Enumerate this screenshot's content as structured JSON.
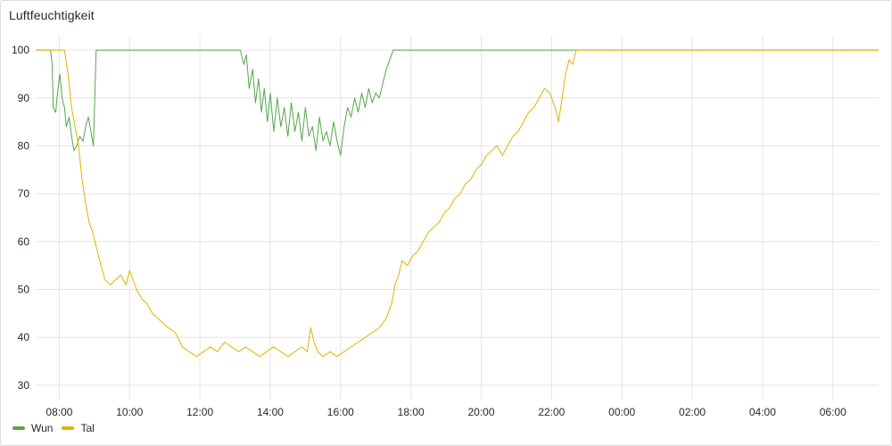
{
  "panel": {
    "title": "Luftfeuchtigkeit"
  },
  "chart_data": {
    "type": "line",
    "y_ticks": [
      30,
      40,
      50,
      60,
      70,
      80,
      90,
      100
    ],
    "ylim": [
      27,
      103
    ],
    "x_tick_labels": [
      "08:00",
      "10:00",
      "12:00",
      "14:00",
      "16:00",
      "18:00",
      "20:00",
      "22:00",
      "00:00",
      "02:00",
      "04:00",
      "06:00"
    ],
    "x_tick_hours": [
      8,
      10,
      12,
      14,
      16,
      18,
      20,
      22,
      24,
      26,
      28,
      30
    ],
    "xlim_hours": [
      7.33,
      31.3
    ],
    "grid": true,
    "legend_position": "bottom-left",
    "series": [
      {
        "name": "Wun",
        "color": "#56a64b",
        "points": [
          [
            7.33,
            100
          ],
          [
            7.75,
            100
          ],
          [
            7.8,
            97
          ],
          [
            7.83,
            88
          ],
          [
            7.9,
            87
          ],
          [
            7.95,
            91
          ],
          [
            8.02,
            95
          ],
          [
            8.08,
            90
          ],
          [
            8.15,
            88
          ],
          [
            8.2,
            84
          ],
          [
            8.28,
            86
          ],
          [
            8.35,
            82
          ],
          [
            8.42,
            79
          ],
          [
            8.5,
            80
          ],
          [
            8.58,
            82
          ],
          [
            8.68,
            81
          ],
          [
            8.75,
            84
          ],
          [
            8.83,
            86
          ],
          [
            8.9,
            83
          ],
          [
            8.97,
            80
          ],
          [
            9.05,
            100
          ],
          [
            13.0,
            100
          ],
          [
            13.15,
            100
          ],
          [
            13.25,
            97
          ],
          [
            13.32,
            99
          ],
          [
            13.4,
            92
          ],
          [
            13.5,
            96
          ],
          [
            13.58,
            89
          ],
          [
            13.67,
            94
          ],
          [
            13.75,
            87
          ],
          [
            13.83,
            92
          ],
          [
            13.92,
            85
          ],
          [
            14.0,
            91
          ],
          [
            14.1,
            83
          ],
          [
            14.2,
            90
          ],
          [
            14.3,
            84
          ],
          [
            14.4,
            88
          ],
          [
            14.5,
            82
          ],
          [
            14.6,
            89
          ],
          [
            14.7,
            83
          ],
          [
            14.8,
            87
          ],
          [
            14.9,
            81
          ],
          [
            15.0,
            88
          ],
          [
            15.1,
            82
          ],
          [
            15.2,
            84
          ],
          [
            15.3,
            79
          ],
          [
            15.4,
            86
          ],
          [
            15.5,
            81
          ],
          [
            15.6,
            83
          ],
          [
            15.7,
            80
          ],
          [
            15.8,
            85
          ],
          [
            15.9,
            81
          ],
          [
            16.0,
            78
          ],
          [
            16.1,
            84
          ],
          [
            16.2,
            88
          ],
          [
            16.3,
            86
          ],
          [
            16.4,
            90
          ],
          [
            16.5,
            87
          ],
          [
            16.6,
            91
          ],
          [
            16.7,
            88
          ],
          [
            16.8,
            92
          ],
          [
            16.9,
            89
          ],
          [
            17.0,
            91
          ],
          [
            17.1,
            90
          ],
          [
            17.2,
            93
          ],
          [
            17.3,
            96
          ],
          [
            17.4,
            98
          ],
          [
            17.5,
            100
          ],
          [
            31.3,
            100
          ]
        ]
      },
      {
        "name": "Tal",
        "color": "#e0b400",
        "points": [
          [
            7.33,
            100
          ],
          [
            8.15,
            100
          ],
          [
            8.25,
            95
          ],
          [
            8.35,
            88
          ],
          [
            8.45,
            84
          ],
          [
            8.55,
            80
          ],
          [
            8.65,
            73
          ],
          [
            8.75,
            68
          ],
          [
            8.85,
            64
          ],
          [
            8.95,
            62
          ],
          [
            9.05,
            59
          ],
          [
            9.15,
            56
          ],
          [
            9.3,
            52
          ],
          [
            9.45,
            51
          ],
          [
            9.6,
            52
          ],
          [
            9.75,
            53
          ],
          [
            9.9,
            51
          ],
          [
            10.0,
            54
          ],
          [
            10.1,
            52
          ],
          [
            10.2,
            50
          ],
          [
            10.35,
            48
          ],
          [
            10.5,
            47
          ],
          [
            10.65,
            45
          ],
          [
            10.8,
            44
          ],
          [
            10.95,
            43
          ],
          [
            11.1,
            42
          ],
          [
            11.3,
            41
          ],
          [
            11.5,
            38
          ],
          [
            11.7,
            37
          ],
          [
            11.9,
            36
          ],
          [
            12.1,
            37
          ],
          [
            12.3,
            38
          ],
          [
            12.5,
            37
          ],
          [
            12.7,
            39
          ],
          [
            12.9,
            38
          ],
          [
            13.1,
            37
          ],
          [
            13.3,
            38
          ],
          [
            13.5,
            37
          ],
          [
            13.7,
            36
          ],
          [
            13.9,
            37
          ],
          [
            14.1,
            38
          ],
          [
            14.3,
            37
          ],
          [
            14.5,
            36
          ],
          [
            14.7,
            37
          ],
          [
            14.9,
            38
          ],
          [
            15.05,
            37
          ],
          [
            15.15,
            42
          ],
          [
            15.25,
            39
          ],
          [
            15.35,
            37
          ],
          [
            15.5,
            36
          ],
          [
            15.7,
            37
          ],
          [
            15.9,
            36
          ],
          [
            16.1,
            37
          ],
          [
            16.3,
            38
          ],
          [
            16.5,
            39
          ],
          [
            16.7,
            40
          ],
          [
            16.9,
            41
          ],
          [
            17.1,
            42
          ],
          [
            17.3,
            44
          ],
          [
            17.45,
            47
          ],
          [
            17.55,
            51
          ],
          [
            17.65,
            53
          ],
          [
            17.75,
            56
          ],
          [
            17.9,
            55
          ],
          [
            18.05,
            57
          ],
          [
            18.2,
            58
          ],
          [
            18.35,
            60
          ],
          [
            18.5,
            62
          ],
          [
            18.65,
            63
          ],
          [
            18.8,
            64
          ],
          [
            18.95,
            66
          ],
          [
            19.1,
            67
          ],
          [
            19.25,
            69
          ],
          [
            19.4,
            70
          ],
          [
            19.55,
            72
          ],
          [
            19.7,
            73
          ],
          [
            19.85,
            75
          ],
          [
            20.0,
            76
          ],
          [
            20.15,
            78
          ],
          [
            20.3,
            79
          ],
          [
            20.45,
            80
          ],
          [
            20.6,
            78
          ],
          [
            20.75,
            80
          ],
          [
            20.9,
            82
          ],
          [
            21.05,
            83
          ],
          [
            21.2,
            85
          ],
          [
            21.35,
            87
          ],
          [
            21.5,
            88
          ],
          [
            21.65,
            90
          ],
          [
            21.8,
            92
          ],
          [
            21.95,
            91
          ],
          [
            22.1,
            88
          ],
          [
            22.2,
            85
          ],
          [
            22.3,
            90
          ],
          [
            22.4,
            95
          ],
          [
            22.5,
            98
          ],
          [
            22.6,
            97
          ],
          [
            22.7,
            100
          ],
          [
            31.3,
            100
          ]
        ]
      }
    ]
  }
}
